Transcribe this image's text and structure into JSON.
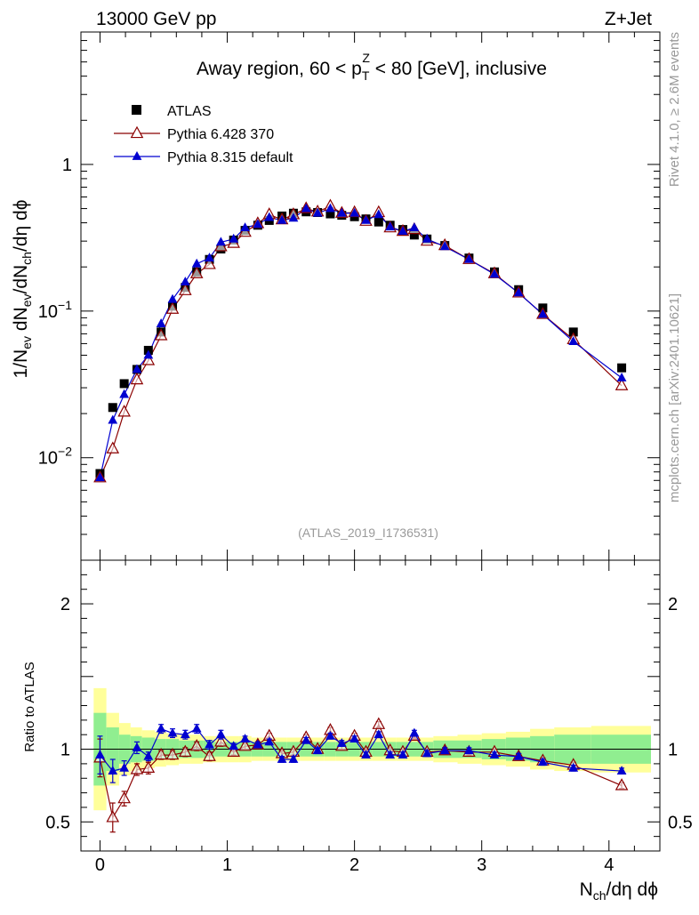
{
  "header": {
    "left": "13000 GeV pp",
    "right": "Z+Jet"
  },
  "side": {
    "rivet": "Rivet 4.1.0, ≥ 2.6M events",
    "mcplots": "mcplots.cern.ch [arXiv:2401.10621]"
  },
  "chart_data": {
    "type": "scatter",
    "title": "Away region, 60 < p_T^Z < 80 [GeV], inclusive",
    "title_parts": {
      "pre": "Away region, 60 < p",
      "sup": "Z",
      "sub": "T",
      "post": " < 80 [GeV], inclusive"
    },
    "watermark": "(ATLAS_2019_I1736531)",
    "ylabel": "1/N_ev dN_ev/dN_ch/dη dϕ",
    "ylabel_parts": {
      "a": "1/N",
      "a_sub": "ev",
      "b": " dN",
      "b_sub": "ev",
      "c": "/dN",
      "c_sub": "ch",
      "d": "/dη dϕ"
    },
    "xlabel": "N_ch/dη dϕ",
    "xlabel_parts": {
      "a": "N",
      "a_sub": "ch",
      "b": "/dη dϕ"
    },
    "ratio_ylabel": "Ratio to ATLAS",
    "xlim": [
      -0.15,
      4.4
    ],
    "ylim": [
      0.002,
      8
    ],
    "yscale": "log",
    "ratio_ylim": [
      0.3,
      2.3
    ],
    "x_ticks": [
      {
        "v": 0,
        "label": "0"
      },
      {
        "v": 1,
        "label": "1"
      },
      {
        "v": 2,
        "label": "2"
      },
      {
        "v": 3,
        "label": "3"
      },
      {
        "v": 4,
        "label": "4"
      }
    ],
    "y_ticks": [
      {
        "v": 0.01,
        "base": "10",
        "exp": "−2"
      },
      {
        "v": 0.1,
        "base": "10",
        "exp": "−1"
      },
      {
        "v": 1,
        "base": "1",
        "exp": ""
      }
    ],
    "ratio_ticks": [
      {
        "v": 0.5,
        "label": "0.5"
      },
      {
        "v": 1,
        "label": "1"
      },
      {
        "v": 2,
        "label": "2"
      }
    ],
    "legend": [
      {
        "name": "ATLAS",
        "marker": "square",
        "color": "#000000"
      },
      {
        "name": "Pythia 6.428 370",
        "marker": "open-triangle",
        "color": "#8b0000"
      },
      {
        "name": "Pythia 8.315 default",
        "marker": "triangle",
        "color": "#0000d0"
      }
    ],
    "x": [
      0,
      0.1,
      0.19,
      0.29,
      0.38,
      0.48,
      0.57,
      0.67,
      0.76,
      0.86,
      0.95,
      1.05,
      1.14,
      1.24,
      1.33,
      1.43,
      1.52,
      1.62,
      1.71,
      1.81,
      1.9,
      2.0,
      2.09,
      2.19,
      2.28,
      2.38,
      2.47,
      2.57,
      2.71,
      2.9,
      3.1,
      3.29,
      3.48,
      3.72,
      4.1
    ],
    "series": [
      {
        "name": "ATLAS",
        "values": [
          0.0078,
          0.022,
          0.032,
          0.04,
          0.054,
          0.072,
          0.108,
          0.145,
          0.185,
          0.225,
          0.265,
          0.305,
          0.355,
          0.385,
          0.415,
          0.445,
          0.465,
          0.475,
          0.47,
          0.46,
          0.45,
          0.44,
          0.425,
          0.405,
          0.385,
          0.36,
          0.33,
          0.31,
          0.28,
          0.23,
          0.185,
          0.14,
          0.105,
          0.072,
          0.041
        ]
      },
      {
        "name": "Pythia 6.428 370",
        "values": [
          0.0073,
          0.0115,
          0.0205,
          0.034,
          0.046,
          0.068,
          0.103,
          0.138,
          0.18,
          0.208,
          0.275,
          0.29,
          0.345,
          0.395,
          0.455,
          0.42,
          0.455,
          0.5,
          0.475,
          0.52,
          0.465,
          0.47,
          0.41,
          0.47,
          0.37,
          0.35,
          0.36,
          0.3,
          0.28,
          0.225,
          0.18,
          0.133,
          0.095,
          0.064,
          0.031
        ]
      },
      {
        "name": "Pythia 8.315 default",
        "values": [
          0.0073,
          0.018,
          0.027,
          0.04,
          0.05,
          0.082,
          0.12,
          0.158,
          0.21,
          0.23,
          0.295,
          0.31,
          0.37,
          0.39,
          0.435,
          0.415,
          0.43,
          0.5,
          0.465,
          0.5,
          0.465,
          0.465,
          0.415,
          0.455,
          0.375,
          0.35,
          0.37,
          0.31,
          0.275,
          0.225,
          0.178,
          0.133,
          0.095,
          0.062,
          0.035
        ]
      }
    ],
    "ratio_series": [
      {
        "name": "Pythia 6.428 370",
        "values": [
          0.94,
          0.53,
          0.66,
          0.86,
          0.87,
          0.96,
          0.96,
          0.98,
          1.02,
          0.95,
          1.05,
          0.98,
          1.02,
          1.03,
          1.09,
          0.97,
          0.98,
          1.08,
          1.0,
          1.13,
          1.02,
          1.09,
          0.98,
          1.17,
          0.99,
          0.98,
          1.09,
          0.98,
          0.99,
          0.98,
          0.98,
          0.95,
          0.92,
          0.89,
          0.75
        ]
      },
      {
        "name": "Pythia 8.315 default",
        "values": [
          0.96,
          0.85,
          0.87,
          1.01,
          0.95,
          1.14,
          1.11,
          1.1,
          1.14,
          1.03,
          1.1,
          1.02,
          1.07,
          1.03,
          1.05,
          0.93,
          0.93,
          1.06,
          0.99,
          1.09,
          1.04,
          1.07,
          0.96,
          1.1,
          0.96,
          0.96,
          1.11,
          0.97,
          0.99,
          0.99,
          0.96,
          0.95,
          0.91,
          0.87,
          0.85
        ]
      }
    ],
    "ratio_errors": [
      [
        0.13,
        0.1,
        0.05,
        0.04,
        0.04,
        0.03,
        0.03,
        0.03,
        0.03,
        0.03,
        0.03,
        0.02,
        0.02,
        0.02,
        0.02,
        0.02,
        0.02,
        0.02,
        0.02,
        0.02,
        0.02,
        0.02,
        0.02,
        0.02,
        0.02,
        0.02,
        0.02,
        0.02,
        0.02,
        0.02,
        0.02,
        0.02,
        0.02,
        0.02,
        0.02
      ],
      [
        0.13,
        0.08,
        0.05,
        0.04,
        0.03,
        0.03,
        0.03,
        0.03,
        0.03,
        0.03,
        0.03,
        0.02,
        0.02,
        0.02,
        0.02,
        0.02,
        0.02,
        0.02,
        0.02,
        0.02,
        0.02,
        0.02,
        0.02,
        0.02,
        0.02,
        0.02,
        0.02,
        0.02,
        0.02,
        0.02,
        0.02,
        0.02,
        0.02,
        0.02,
        0.02
      ]
    ],
    "band_edges": [
      -0.05,
      0.05,
      0.15,
      0.24,
      0.33,
      0.43,
      0.52,
      0.62,
      0.71,
      0.81,
      0.9,
      1.0,
      1.09,
      1.19,
      1.28,
      1.38,
      1.47,
      1.57,
      1.66,
      1.76,
      1.85,
      1.95,
      2.04,
      2.14,
      2.23,
      2.33,
      2.42,
      2.52,
      2.62,
      2.81,
      3.0,
      3.19,
      3.38,
      3.57,
      3.86,
      4.33
    ],
    "band_green": [
      0.25,
      0.15,
      0.1,
      0.09,
      0.08,
      0.07,
      0.07,
      0.06,
      0.06,
      0.06,
      0.05,
      0.05,
      0.05,
      0.05,
      0.05,
      0.05,
      0.05,
      0.05,
      0.05,
      0.05,
      0.05,
      0.05,
      0.05,
      0.05,
      0.05,
      0.05,
      0.05,
      0.05,
      0.06,
      0.06,
      0.07,
      0.08,
      0.09,
      0.1,
      0.1
    ],
    "band_yellow": [
      0.42,
      0.25,
      0.18,
      0.15,
      0.13,
      0.12,
      0.11,
      0.1,
      0.1,
      0.09,
      0.09,
      0.09,
      0.09,
      0.08,
      0.08,
      0.08,
      0.08,
      0.08,
      0.08,
      0.08,
      0.08,
      0.08,
      0.08,
      0.08,
      0.08,
      0.08,
      0.08,
      0.08,
      0.09,
      0.1,
      0.11,
      0.12,
      0.14,
      0.15,
      0.16
    ],
    "band_colors": {
      "green": "#90ee90",
      "yellow": "#ffff9a"
    }
  }
}
